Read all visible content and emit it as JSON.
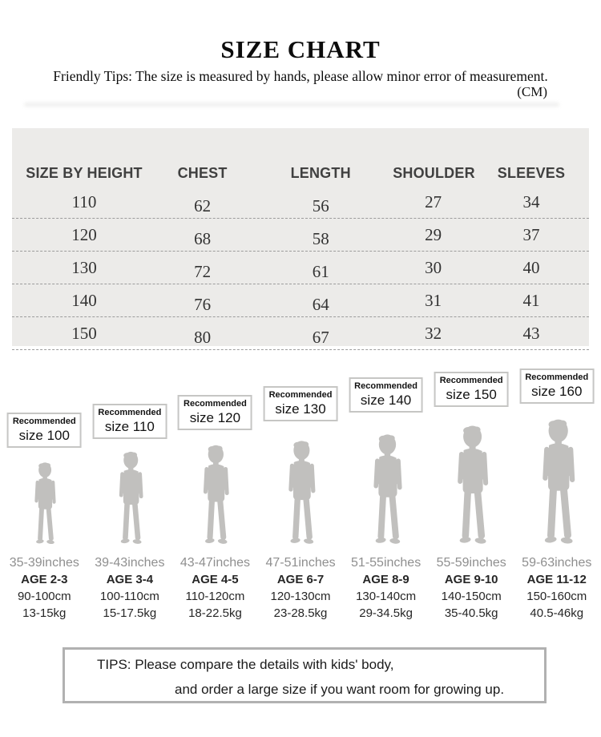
{
  "header": {
    "title": "SIZE CHART",
    "friendly_tips": "Friendly Tips: The size is measured by hands, please allow minor error of measurement.",
    "unit": "(CM)"
  },
  "table": {
    "columns": [
      "SIZE BY HEIGHT",
      "CHEST",
      "LENGTH",
      "SHOULDER",
      "SLEEVES"
    ],
    "rows": [
      [
        110,
        62,
        56,
        27,
        34
      ],
      [
        120,
        68,
        58,
        29,
        37
      ],
      [
        130,
        72,
        61,
        30,
        40
      ],
      [
        140,
        76,
        64,
        31,
        41
      ],
      [
        150,
        80,
        67,
        32,
        43
      ]
    ]
  },
  "sizes": [
    {
      "recommended_label": "Recommended",
      "size_label": "size 100",
      "height_inches": "35-39inches",
      "age": "AGE 2-3",
      "height_cm": "90-100cm",
      "weight_kg": "13-15kg"
    },
    {
      "recommended_label": "Recommended",
      "size_label": "size 110",
      "height_inches": "39-43inches",
      "age": "AGE 3-4",
      "height_cm": "100-110cm",
      "weight_kg": "15-17.5kg"
    },
    {
      "recommended_label": "Recommended",
      "size_label": "size 120",
      "height_inches": "43-47inches",
      "age": "AGE 4-5",
      "height_cm": "110-120cm",
      "weight_kg": "18-22.5kg"
    },
    {
      "recommended_label": "Recommended",
      "size_label": "size 130",
      "height_inches": "47-51inches",
      "age": "AGE 6-7",
      "height_cm": "120-130cm",
      "weight_kg": "23-28.5kg"
    },
    {
      "recommended_label": "Recommended",
      "size_label": "size 140",
      "height_inches": "51-55inches",
      "age": "AGE 8-9",
      "height_cm": "130-140cm",
      "weight_kg": "29-34.5kg"
    },
    {
      "recommended_label": "Recommended",
      "size_label": "size 150",
      "height_inches": "55-59inches",
      "age": "AGE 9-10",
      "height_cm": "140-150cm",
      "weight_kg": "35-40.5kg"
    },
    {
      "recommended_label": "Recommended",
      "size_label": "size 160",
      "height_inches": "59-63inches",
      "age": "AGE 11-12",
      "height_cm": "150-160cm",
      "weight_kg": "40.5-46kg"
    }
  ],
  "tips": {
    "line1": "TIPS: Please compare the details with kids' body,",
    "line2": "and order a large size if you want room for growing up."
  },
  "colors": {
    "table_background": "#ECEBE9",
    "silhouette": "#C1C0BE",
    "muted_text": "#8F8F8F",
    "dark_text": "#262626",
    "box_border": "#C6C6C4",
    "tips_border": "#B1B1B1"
  }
}
